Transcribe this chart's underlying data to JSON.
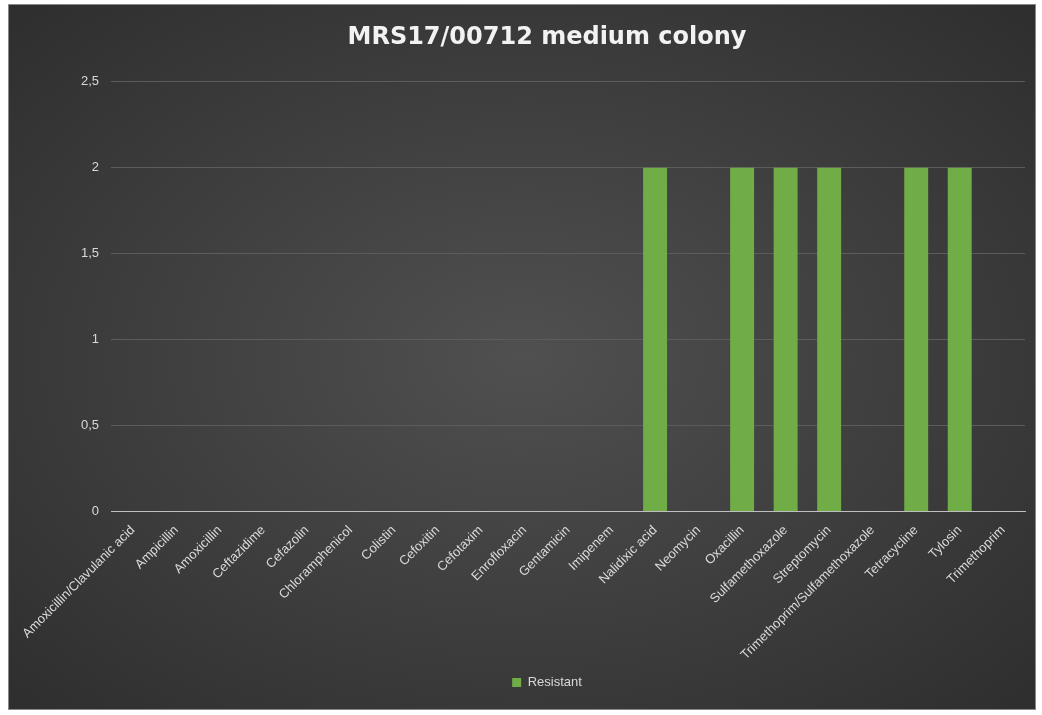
{
  "chart_data": {
    "type": "bar",
    "title": "MRS17/00712 medium colony",
    "categories": [
      "Amoxicillin/Clavulanic acid",
      "Ampicillin",
      "Amoxicillin",
      "Ceftazidime",
      "Cefazolin",
      "Chloramphenicol",
      "Colistin",
      "Cefoxitin",
      "Cefotaxim",
      "Enrofloxacin",
      "Gentamicin",
      "Imipenem",
      "Nalidixic acid",
      "Neomycin",
      "Oxacillin",
      "Sulfamethoxazole",
      "Streptomycin",
      "Trimethoprim/Sulfamethoxazole",
      "Tetracycline",
      "Tylosin",
      "Trimethoprim"
    ],
    "series": [
      {
        "name": "Resistant",
        "color": "#70ad47",
        "values": [
          0,
          0,
          0,
          0,
          0,
          0,
          0,
          0,
          0,
          0,
          0,
          0,
          2,
          0,
          2,
          2,
          2,
          0,
          2,
          2,
          0
        ]
      }
    ],
    "ylim": [
      0,
      2.5
    ],
    "yticks": [
      0,
      {
        "value": 0.5,
        "label": "0,5"
      },
      1,
      {
        "value": 1.5,
        "label": "1,5"
      },
      2,
      {
        "value": 2.5,
        "label": "2,5"
      }
    ],
    "grid": "y",
    "legend": "bottom"
  }
}
